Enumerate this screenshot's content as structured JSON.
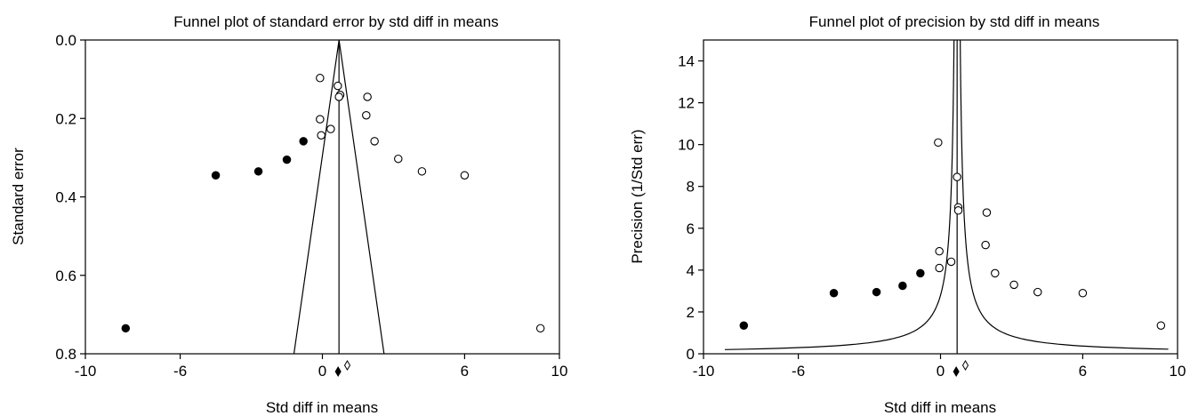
{
  "chart_data": [
    {
      "type": "scatter",
      "title": "Funnel plot of standard error by std diff in means",
      "xlabel": "Std diff in means",
      "ylabel": "Standard error",
      "xlim": [
        -10,
        10
      ],
      "ylim": [
        0.8,
        0.0
      ],
      "y_inverted": true,
      "xticks": [
        "-10",
        "-6",
        "0",
        "6",
        "10"
      ],
      "xtick_values": [
        -10,
        -6,
        0,
        6,
        10
      ],
      "yticks": [
        "0.0",
        "0.2",
        "0.4",
        "0.6",
        "0.8"
      ],
      "ytick_values": [
        0.0,
        0.2,
        0.4,
        0.6,
        0.8
      ],
      "grid": false,
      "center_line_x": 0.7,
      "funnel": [
        [
          -1.2,
          0.8
        ],
        [
          0.7,
          0.0
        ],
        [
          2.6,
          0.8
        ]
      ],
      "series": [
        {
          "marker": "open-circle",
          "points": [
            [
              -0.1,
              0.097
            ],
            [
              0.65,
              0.117
            ],
            [
              0.75,
              0.14
            ],
            [
              0.7,
              0.145
            ],
            [
              1.9,
              0.145
            ],
            [
              1.85,
              0.192
            ],
            [
              -0.1,
              0.202
            ],
            [
              0.35,
              0.227
            ],
            [
              -0.05,
              0.243
            ],
            [
              2.2,
              0.258
            ],
            [
              3.2,
              0.303
            ],
            [
              4.2,
              0.335
            ],
            [
              6.0,
              0.345
            ],
            [
              9.2,
              0.735
            ]
          ]
        },
        {
          "marker": "filled-circle",
          "points": [
            [
              -0.8,
              0.258
            ],
            [
              -1.5,
              0.305
            ],
            [
              -2.7,
              0.335
            ],
            [
              -4.5,
              0.345
            ],
            [
              -8.3,
              0.735
            ]
          ]
        }
      ],
      "summary_diamonds": [
        {
          "x": 0.7,
          "filled": true
        },
        {
          "x": 0.9,
          "filled": false
        }
      ]
    },
    {
      "type": "scatter",
      "title": "Funnel plot of precision by std diff in means",
      "xlabel": "Std diff in means",
      "ylabel": "Precision (1/Std err)",
      "xlim": [
        -10,
        10
      ],
      "ylim": [
        0,
        15
      ],
      "xticks": [
        "-10",
        "-6",
        "0",
        "6",
        "10"
      ],
      "xtick_values": [
        -10,
        -6,
        0,
        6,
        10
      ],
      "yticks": [
        "0",
        "2",
        "4",
        "6",
        "8",
        "10",
        "12",
        "14"
      ],
      "ytick_values": [
        0,
        2,
        4,
        6,
        8,
        10,
        12,
        14
      ],
      "grid": false,
      "center_line_x": 0.7,
      "series": [
        {
          "marker": "open-circle",
          "points": [
            [
              -0.1,
              10.1
            ],
            [
              0.7,
              8.45
            ],
            [
              0.75,
              7.0
            ],
            [
              0.75,
              6.85
            ],
            [
              1.95,
              6.75
            ],
            [
              1.9,
              5.2
            ],
            [
              -0.05,
              4.9
            ],
            [
              0.45,
              4.4
            ],
            [
              -0.05,
              4.1
            ],
            [
              2.3,
              3.85
            ],
            [
              3.1,
              3.3
            ],
            [
              4.1,
              2.95
            ],
            [
              6.0,
              2.9
            ],
            [
              9.3,
              1.35
            ]
          ]
        },
        {
          "marker": "filled-circle",
          "points": [
            [
              -0.85,
              3.85
            ],
            [
              -1.6,
              3.25
            ],
            [
              -2.7,
              2.95
            ],
            [
              -4.5,
              2.9
            ],
            [
              -8.3,
              1.35
            ]
          ]
        }
      ],
      "summary_diamonds": [
        {
          "x": 0.7,
          "filled": true
        },
        {
          "x": 0.9,
          "filled": false
        }
      ]
    }
  ]
}
